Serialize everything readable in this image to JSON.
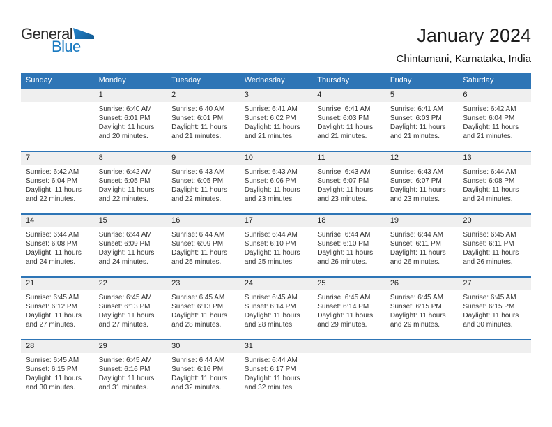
{
  "logo": {
    "general": "General",
    "blue": "Blue"
  },
  "header": {
    "title": "January 2024",
    "location": "Chintamani, Karnataka, India"
  },
  "colors": {
    "header_blue": "#2E75B6",
    "band_gray": "#EFEFEF",
    "logo_blue": "#1879C0",
    "logo_dark": "#2B2B2B"
  },
  "weekdays": [
    "Sunday",
    "Monday",
    "Tuesday",
    "Wednesday",
    "Thursday",
    "Friday",
    "Saturday"
  ],
  "weeks": [
    [
      null,
      {
        "day": "1",
        "sunrise": "Sunrise: 6:40 AM",
        "sunset": "Sunset: 6:01 PM",
        "daylight": "Daylight: 11 hours and 20 minutes."
      },
      {
        "day": "2",
        "sunrise": "Sunrise: 6:40 AM",
        "sunset": "Sunset: 6:01 PM",
        "daylight": "Daylight: 11 hours and 21 minutes."
      },
      {
        "day": "3",
        "sunrise": "Sunrise: 6:41 AM",
        "sunset": "Sunset: 6:02 PM",
        "daylight": "Daylight: 11 hours and 21 minutes."
      },
      {
        "day": "4",
        "sunrise": "Sunrise: 6:41 AM",
        "sunset": "Sunset: 6:03 PM",
        "daylight": "Daylight: 11 hours and 21 minutes."
      },
      {
        "day": "5",
        "sunrise": "Sunrise: 6:41 AM",
        "sunset": "Sunset: 6:03 PM",
        "daylight": "Daylight: 11 hours and 21 minutes."
      },
      {
        "day": "6",
        "sunrise": "Sunrise: 6:42 AM",
        "sunset": "Sunset: 6:04 PM",
        "daylight": "Daylight: 11 hours and 21 minutes."
      }
    ],
    [
      {
        "day": "7",
        "sunrise": "Sunrise: 6:42 AM",
        "sunset": "Sunset: 6:04 PM",
        "daylight": "Daylight: 11 hours and 22 minutes."
      },
      {
        "day": "8",
        "sunrise": "Sunrise: 6:42 AM",
        "sunset": "Sunset: 6:05 PM",
        "daylight": "Daylight: 11 hours and 22 minutes."
      },
      {
        "day": "9",
        "sunrise": "Sunrise: 6:43 AM",
        "sunset": "Sunset: 6:05 PM",
        "daylight": "Daylight: 11 hours and 22 minutes."
      },
      {
        "day": "10",
        "sunrise": "Sunrise: 6:43 AM",
        "sunset": "Sunset: 6:06 PM",
        "daylight": "Daylight: 11 hours and 23 minutes."
      },
      {
        "day": "11",
        "sunrise": "Sunrise: 6:43 AM",
        "sunset": "Sunset: 6:07 PM",
        "daylight": "Daylight: 11 hours and 23 minutes."
      },
      {
        "day": "12",
        "sunrise": "Sunrise: 6:43 AM",
        "sunset": "Sunset: 6:07 PM",
        "daylight": "Daylight: 11 hours and 23 minutes."
      },
      {
        "day": "13",
        "sunrise": "Sunrise: 6:44 AM",
        "sunset": "Sunset: 6:08 PM",
        "daylight": "Daylight: 11 hours and 24 minutes."
      }
    ],
    [
      {
        "day": "14",
        "sunrise": "Sunrise: 6:44 AM",
        "sunset": "Sunset: 6:08 PM",
        "daylight": "Daylight: 11 hours and 24 minutes."
      },
      {
        "day": "15",
        "sunrise": "Sunrise: 6:44 AM",
        "sunset": "Sunset: 6:09 PM",
        "daylight": "Daylight: 11 hours and 24 minutes."
      },
      {
        "day": "16",
        "sunrise": "Sunrise: 6:44 AM",
        "sunset": "Sunset: 6:09 PM",
        "daylight": "Daylight: 11 hours and 25 minutes."
      },
      {
        "day": "17",
        "sunrise": "Sunrise: 6:44 AM",
        "sunset": "Sunset: 6:10 PM",
        "daylight": "Daylight: 11 hours and 25 minutes."
      },
      {
        "day": "18",
        "sunrise": "Sunrise: 6:44 AM",
        "sunset": "Sunset: 6:10 PM",
        "daylight": "Daylight: 11 hours and 26 minutes."
      },
      {
        "day": "19",
        "sunrise": "Sunrise: 6:44 AM",
        "sunset": "Sunset: 6:11 PM",
        "daylight": "Daylight: 11 hours and 26 minutes."
      },
      {
        "day": "20",
        "sunrise": "Sunrise: 6:45 AM",
        "sunset": "Sunset: 6:11 PM",
        "daylight": "Daylight: 11 hours and 26 minutes."
      }
    ],
    [
      {
        "day": "21",
        "sunrise": "Sunrise: 6:45 AM",
        "sunset": "Sunset: 6:12 PM",
        "daylight": "Daylight: 11 hours and 27 minutes."
      },
      {
        "day": "22",
        "sunrise": "Sunrise: 6:45 AM",
        "sunset": "Sunset: 6:13 PM",
        "daylight": "Daylight: 11 hours and 27 minutes."
      },
      {
        "day": "23",
        "sunrise": "Sunrise: 6:45 AM",
        "sunset": "Sunset: 6:13 PM",
        "daylight": "Daylight: 11 hours and 28 minutes."
      },
      {
        "day": "24",
        "sunrise": "Sunrise: 6:45 AM",
        "sunset": "Sunset: 6:14 PM",
        "daylight": "Daylight: 11 hours and 28 minutes."
      },
      {
        "day": "25",
        "sunrise": "Sunrise: 6:45 AM",
        "sunset": "Sunset: 6:14 PM",
        "daylight": "Daylight: 11 hours and 29 minutes."
      },
      {
        "day": "26",
        "sunrise": "Sunrise: 6:45 AM",
        "sunset": "Sunset: 6:15 PM",
        "daylight": "Daylight: 11 hours and 29 minutes."
      },
      {
        "day": "27",
        "sunrise": "Sunrise: 6:45 AM",
        "sunset": "Sunset: 6:15 PM",
        "daylight": "Daylight: 11 hours and 30 minutes."
      }
    ],
    [
      {
        "day": "28",
        "sunrise": "Sunrise: 6:45 AM",
        "sunset": "Sunset: 6:15 PM",
        "daylight": "Daylight: 11 hours and 30 minutes."
      },
      {
        "day": "29",
        "sunrise": "Sunrise: 6:45 AM",
        "sunset": "Sunset: 6:16 PM",
        "daylight": "Daylight: 11 hours and 31 minutes."
      },
      {
        "day": "30",
        "sunrise": "Sunrise: 6:44 AM",
        "sunset": "Sunset: 6:16 PM",
        "daylight": "Daylight: 11 hours and 32 minutes."
      },
      {
        "day": "31",
        "sunrise": "Sunrise: 6:44 AM",
        "sunset": "Sunset: 6:17 PM",
        "daylight": "Daylight: 11 hours and 32 minutes."
      },
      null,
      null,
      null
    ]
  ]
}
